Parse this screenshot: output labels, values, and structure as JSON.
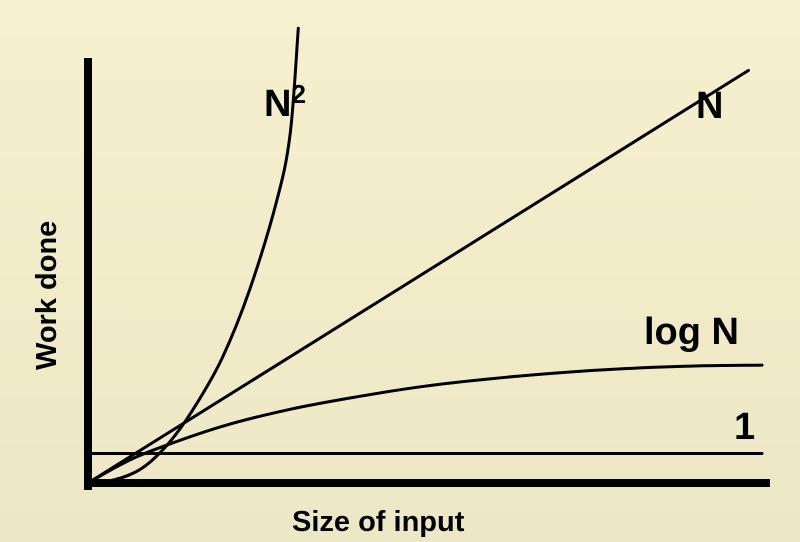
{
  "chart_data": {
    "type": "line",
    "title": "",
    "xlabel": "Size of input",
    "ylabel": "Work done",
    "xlim": [
      0,
      10
    ],
    "ylim": [
      0,
      10
    ],
    "grid": false,
    "legend": "inline labels at curve ends",
    "series": [
      {
        "name": "1",
        "label_text": "1",
        "function": "constant",
        "x": [
          0,
          10
        ],
        "y": [
          0.7,
          0.7
        ]
      },
      {
        "name": "log N",
        "label_text": "log N",
        "function": "logarithmic",
        "x": [
          0,
          0.5,
          1,
          2,
          3,
          4,
          5,
          6,
          7,
          8,
          9,
          10
        ],
        "y": [
          0,
          0.45,
          0.8,
          1.35,
          1.75,
          2.05,
          2.3,
          2.48,
          2.62,
          2.72,
          2.78,
          2.8
        ]
      },
      {
        "name": "N",
        "label_text": "N",
        "function": "linear",
        "x": [
          0,
          9.8
        ],
        "y": [
          0,
          9.8
        ]
      },
      {
        "name": "N2",
        "label_text": "N",
        "label_sup": "2",
        "function": "quadratic",
        "x": [
          0,
          0.4,
          0.8,
          1.2,
          1.6,
          2.0,
          2.4,
          2.8,
          3.0,
          3.12
        ],
        "y": [
          0,
          0.08,
          0.35,
          0.95,
          1.85,
          3.0,
          4.6,
          6.7,
          8.3,
          10.8
        ]
      }
    ]
  }
}
